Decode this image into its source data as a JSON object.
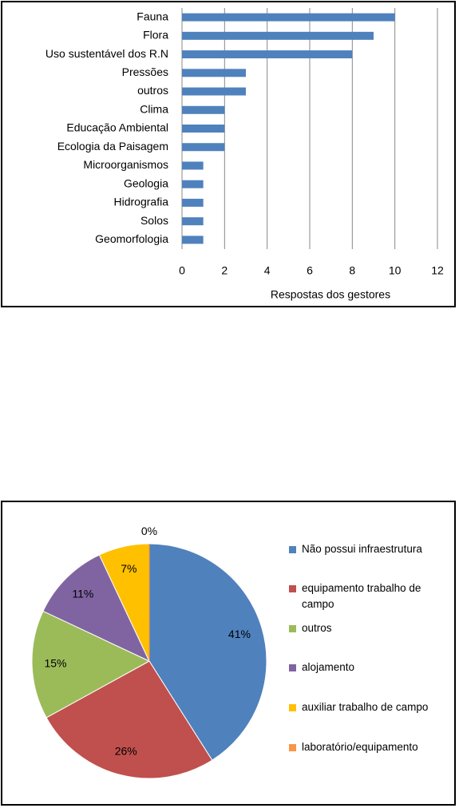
{
  "charts": [
    {
      "type": "bar",
      "orientation": "horizontal",
      "x_label": "Respostas dos gestores",
      "categories": [
        "Fauna",
        "Flora",
        "Uso sustentável dos R.N",
        "Pressões",
        "outros",
        "Clima",
        "Educação Ambiental",
        "Ecologia da Paisagem",
        "Microorganismos",
        "Geologia",
        "Hidrografia",
        "Solos",
        "Geomorfologia"
      ],
      "values": [
        10,
        9,
        8,
        3,
        3,
        2,
        2,
        2,
        1,
        1,
        1,
        1,
        1
      ],
      "color": "#4f81bd",
      "xlim": [
        0,
        12
      ],
      "xticks": [
        0,
        2,
        4,
        6,
        8,
        10,
        12
      ],
      "grid": true
    },
    {
      "type": "pie",
      "categories": [
        "Não possui infraestrutura",
        "equipamento trabalho de campo",
        "outros",
        "alojamento",
        "auxiliar trabalho de campo",
        "laboratório/equipamento"
      ],
      "values": [
        41,
        26,
        15,
        11,
        7,
        0
      ],
      "value_labels": [
        "41%",
        "26%",
        "15%",
        "11%",
        "7%",
        "0%"
      ],
      "colors": [
        "#4f81bd",
        "#c0504d",
        "#9bbb59",
        "#8064a2",
        "#ffc000",
        "#f79646"
      ],
      "legend": "right"
    }
  ]
}
